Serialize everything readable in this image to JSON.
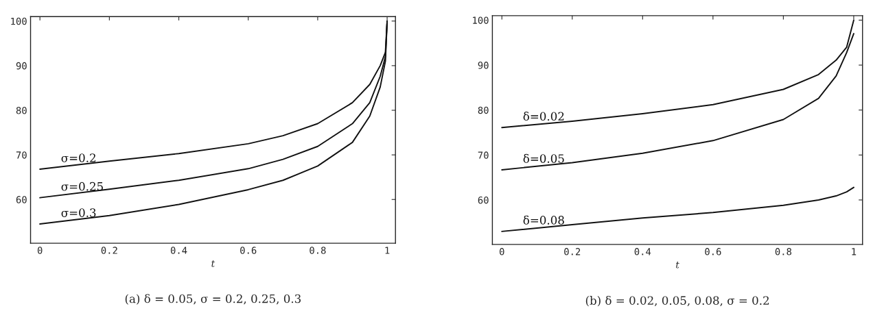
{
  "chart_data": [
    {
      "type": "line",
      "title": "(a) δ = 0.05, σ = 0.2, 0.25, 0.3",
      "xlabel": "t",
      "x": [
        0,
        0.2,
        0.4,
        0.6,
        0.7,
        0.8,
        0.9,
        0.95,
        0.98,
        0.995,
        1
      ],
      "series": [
        {
          "name": "σ=0.2",
          "color": "#111111",
          "values": [
            66.8,
            68.6,
            70.3,
            72.5,
            74.3,
            77.0,
            81.7,
            85.8,
            90.0,
            93.0,
            100
          ]
        },
        {
          "name": "σ=0.25",
          "color": "#111111",
          "values": [
            60.4,
            62.3,
            64.3,
            66.9,
            69.0,
            71.9,
            77.0,
            81.7,
            87.6,
            92.0,
            100
          ]
        },
        {
          "name": "σ=0.3",
          "color": "#111111",
          "values": [
            54.5,
            56.4,
            58.9,
            62.2,
            64.3,
            67.5,
            72.8,
            78.7,
            85.2,
            91.0,
            100
          ]
        }
      ],
      "xlim": [
        -0.027,
        1.024
      ],
      "ylim": [
        50.2,
        101
      ],
      "xticks": [
        0,
        {
          "value": 0.2,
          "label": "0.2"
        },
        {
          "value": 0.4,
          "label": "0.4"
        },
        {
          "value": 0.6,
          "label": "0.6"
        },
        {
          "value": 0.8,
          "label": "0.8"
        },
        1
      ],
      "yticks": [
        60,
        70,
        80,
        90,
        100
      ],
      "grid": false,
      "legend": false
    },
    {
      "type": "line",
      "title": "(b) δ = 0.02, 0.05, 0.08, σ = 0.2",
      "xlabel": "t",
      "x": [
        0,
        0.2,
        0.4,
        0.6,
        0.8,
        0.9,
        0.95,
        0.98,
        1
      ],
      "series": [
        {
          "name": "δ=0.02",
          "color": "#111111",
          "values": [
            76.1,
            77.5,
            79.2,
            81.2,
            84.6,
            87.9,
            91.1,
            94.0,
            100
          ]
        },
        {
          "name": "δ=0.05",
          "color": "#111111",
          "values": [
            66.7,
            68.3,
            70.4,
            73.2,
            77.9,
            82.6,
            87.6,
            92.8,
            97
          ]
        },
        {
          "name": "δ=0.08",
          "color": "#111111",
          "values": [
            53.0,
            54.5,
            56.0,
            57.2,
            58.8,
            60.0,
            60.9,
            61.8,
            62.8
          ]
        }
      ],
      "xlim": [
        -0.027,
        1.025
      ],
      "ylim": [
        50.1,
        101
      ],
      "xticks": [
        0,
        {
          "value": 0.2,
          "label": "0.2"
        },
        {
          "value": 0.4,
          "label": "0.4"
        },
        {
          "value": 0.6,
          "label": "0.6"
        },
        {
          "value": 0.8,
          "label": "0.8"
        },
        1
      ],
      "yticks": [
        60,
        70,
        80,
        90,
        100
      ],
      "grid": false,
      "legend": false
    }
  ]
}
